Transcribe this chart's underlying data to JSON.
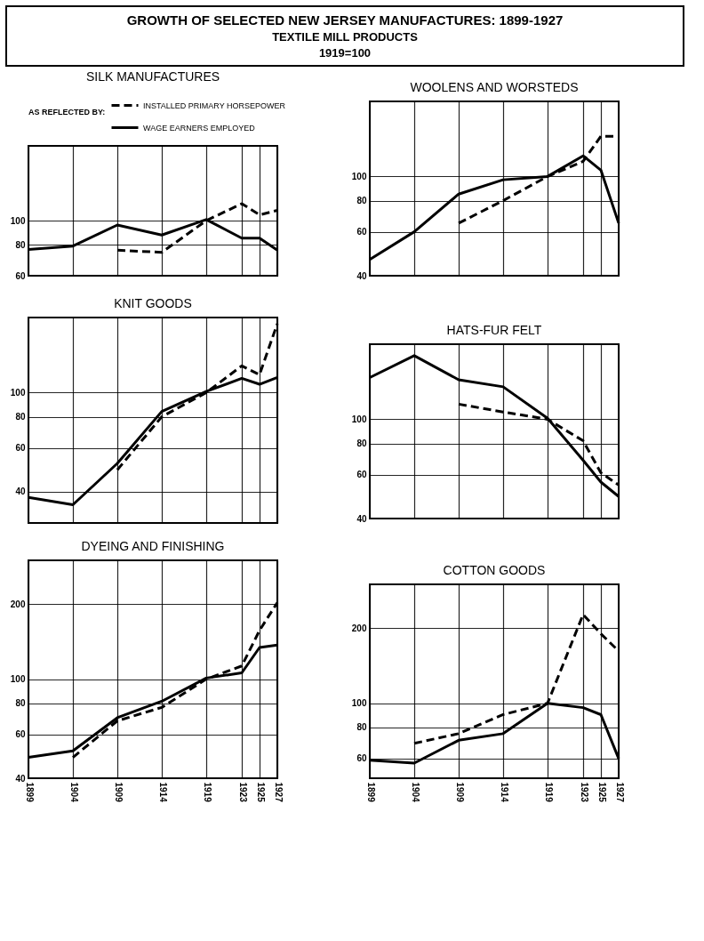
{
  "chart_data": [
    {
      "type": "other",
      "title": "GROWTH OF SELECTED NEW JERSEY MANUFACTURES: 1899-1927",
      "subtitle": "TEXTILE MILL PRODUCTS",
      "annotations": [
        "1919=100"
      ]
    },
    {
      "type": "line",
      "title": "SILK MANUFACTURES",
      "x": [
        1899,
        1904,
        1909,
        1914,
        1919,
        1923,
        1925,
        1927
      ],
      "xlim": [
        1899,
        1927
      ],
      "xticks": [
        1899,
        1904,
        1909,
        1914,
        1919,
        1923,
        1925,
        1927
      ],
      "ylim": [
        60,
        200
      ],
      "yticks": [
        60,
        80,
        100
      ],
      "log": true,
      "grid": true,
      "tick_labels": "y",
      "legend": "top",
      "legend_title": "AS REFLECTED BY:",
      "series": [
        {
          "name": "INSTALLED PRIMARY HORSEPOWER",
          "color": "#000000",
          "line_style": "dashed",
          "values": [
            null,
            null,
            76,
            74.5,
            100,
            117,
            105.5,
            110
          ]
        },
        {
          "name": "WAGE EARNERS EMPLOYED",
          "color": "#000000",
          "line_style": "solid",
          "values": [
            76.5,
            79,
            96,
            87.5,
            101,
            85,
            85,
            76
          ]
        }
      ]
    },
    {
      "type": "line",
      "title": "WOOLENS AND WORSTEDS",
      "x": [
        1899,
        1904,
        1909,
        1914,
        1919,
        1923,
        1925,
        1927
      ],
      "xlim": [
        1899,
        1927
      ],
      "xticks": [
        1899,
        1904,
        1909,
        1914,
        1919,
        1923,
        1925,
        1927
      ],
      "ylim": [
        40,
        200
      ],
      "yticks": [
        40,
        60,
        80,
        100
      ],
      "log": true,
      "grid": true,
      "tick_labels": "y",
      "series": [
        {
          "color": "#000000",
          "line_style": "dashed",
          "values": [
            null,
            null,
            65,
            80,
            100,
            115,
            145,
            145
          ]
        },
        {
          "color": "#000000",
          "line_style": "solid",
          "values": [
            46.5,
            60,
            85,
            97,
            100,
            121,
            106,
            65
          ]
        }
      ]
    },
    {
      "type": "line",
      "title": "KNIT GOODS",
      "x": [
        1899,
        1904,
        1909,
        1914,
        1919,
        1923,
        1925,
        1927
      ],
      "xlim": [
        1899,
        1927
      ],
      "xticks": [
        1899,
        1904,
        1909,
        1914,
        1919,
        1923,
        1925,
        1927
      ],
      "ylim": [
        30,
        200
      ],
      "yticks": [
        40,
        60,
        80,
        100
      ],
      "log": true,
      "grid": true,
      "tick_labels": "y",
      "series": [
        {
          "color": "#000000",
          "line_style": "dashed",
          "values": [
            null,
            null,
            49,
            80,
            100,
            128,
            118,
            189
          ]
        },
        {
          "color": "#000000",
          "line_style": "solid",
          "values": [
            38,
            35.5,
            52,
            84,
            101,
            114,
            108,
            115
          ]
        }
      ]
    },
    {
      "type": "line",
      "title": "HATS-FUR FELT",
      "x": [
        1899,
        1904,
        1909,
        1914,
        1919,
        1923,
        1925,
        1927
      ],
      "xlim": [
        1899,
        1927
      ],
      "xticks": [
        1899,
        1904,
        1909,
        1914,
        1919,
        1923,
        1925,
        1927
      ],
      "ylim": [
        40,
        200
      ],
      "yticks": [
        40,
        60,
        80,
        100
      ],
      "log": true,
      "grid": true,
      "tick_labels": "y",
      "series": [
        {
          "color": "#000000",
          "line_style": "dashed",
          "values": [
            null,
            null,
            115,
            107,
            100,
            82,
            61,
            54.5
          ]
        },
        {
          "color": "#000000",
          "line_style": "solid",
          "values": [
            147,
            180,
            144,
            135,
            101,
            68.5,
            56,
            49
          ]
        }
      ]
    },
    {
      "type": "line",
      "title": "DYEING AND FINISHING",
      "x": [
        1899,
        1904,
        1909,
        1914,
        1919,
        1923,
        1925,
        1927
      ],
      "xlim": [
        1899,
        1927
      ],
      "xticks": [
        1899,
        1904,
        1909,
        1914,
        1919,
        1923,
        1925,
        1927
      ],
      "ylim": [
        40,
        300
      ],
      "yticks": [
        40,
        60,
        80,
        100,
        200
      ],
      "log": true,
      "grid": true,
      "series": [
        {
          "color": "#000000",
          "line_style": "dashed",
          "values": [
            null,
            48.5,
            68,
            77,
            100,
            113,
            157,
            203
          ]
        },
        {
          "color": "#000000",
          "line_style": "solid",
          "values": [
            48.5,
            51.5,
            70,
            81.5,
            101,
            106,
            134,
            137
          ]
        }
      ]
    },
    {
      "type": "line",
      "title": "COTTON GOODS",
      "x": [
        1899,
        1904,
        1909,
        1914,
        1919,
        1923,
        1925,
        1927
      ],
      "xlim": [
        1899,
        1927
      ],
      "xticks": [
        1899,
        1904,
        1909,
        1914,
        1919,
        1923,
        1925,
        1927
      ],
      "ylim": [
        50,
        300
      ],
      "yticks": [
        60,
        80,
        100,
        200
      ],
      "log": true,
      "grid": true,
      "series": [
        {
          "color": "#000000",
          "line_style": "dashed",
          "values": [
            null,
            69,
            75.5,
            90,
            100,
            227,
            190,
            162
          ]
        },
        {
          "color": "#000000",
          "line_style": "solid",
          "values": [
            59,
            57.5,
            71,
            75.5,
            100,
            96,
            90,
            60
          ]
        }
      ]
    }
  ]
}
